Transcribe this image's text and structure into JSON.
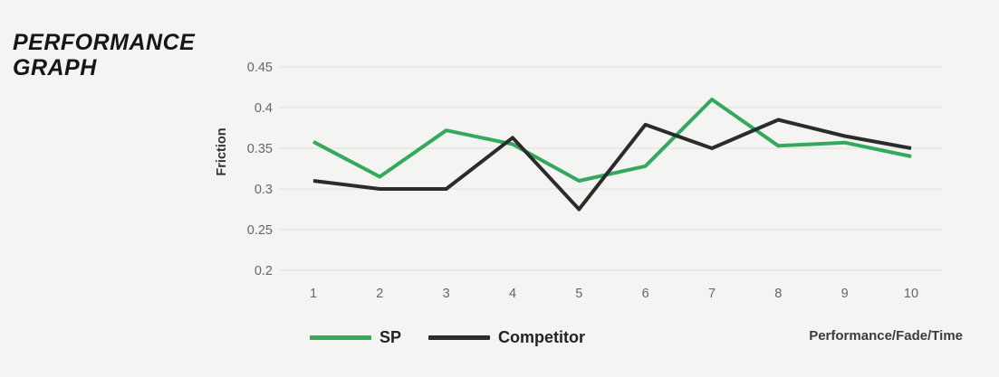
{
  "page": {
    "background": "#f4f4f2"
  },
  "title": "PERFORMANCE GRAPH",
  "chart_data": {
    "type": "line",
    "title": "PERFORMANCE GRAPH",
    "ylabel": "Friction",
    "xlabel": "Performance/Fade/Time",
    "x": [
      "1",
      "2",
      "3",
      "4",
      "5",
      "6",
      "7",
      "8",
      "9",
      "10"
    ],
    "ylim": [
      0.2,
      0.45
    ],
    "ytick_labels": [
      "0.45",
      "0.4",
      "0.35",
      "0.3",
      "0.25",
      "0.2"
    ],
    "grid": "horizontal-only",
    "legend_position": "bottom-left",
    "series": [
      {
        "name": "SP",
        "color": "#33a95c",
        "values": [
          0.358,
          0.315,
          0.372,
          0.355,
          0.31,
          0.328,
          0.41,
          0.353,
          0.357,
          0.34
        ]
      },
      {
        "name": "Competitor",
        "color": "#2b2b2b",
        "values": [
          0.31,
          0.3,
          0.3,
          0.363,
          0.275,
          0.379,
          0.35,
          0.385,
          0.365,
          0.35
        ]
      }
    ],
    "colors": {
      "gridline": "#e2e2e0",
      "tick_text": "#666666",
      "axis_label_text": "#333333",
      "caption_text": "#3c3c3c"
    }
  }
}
